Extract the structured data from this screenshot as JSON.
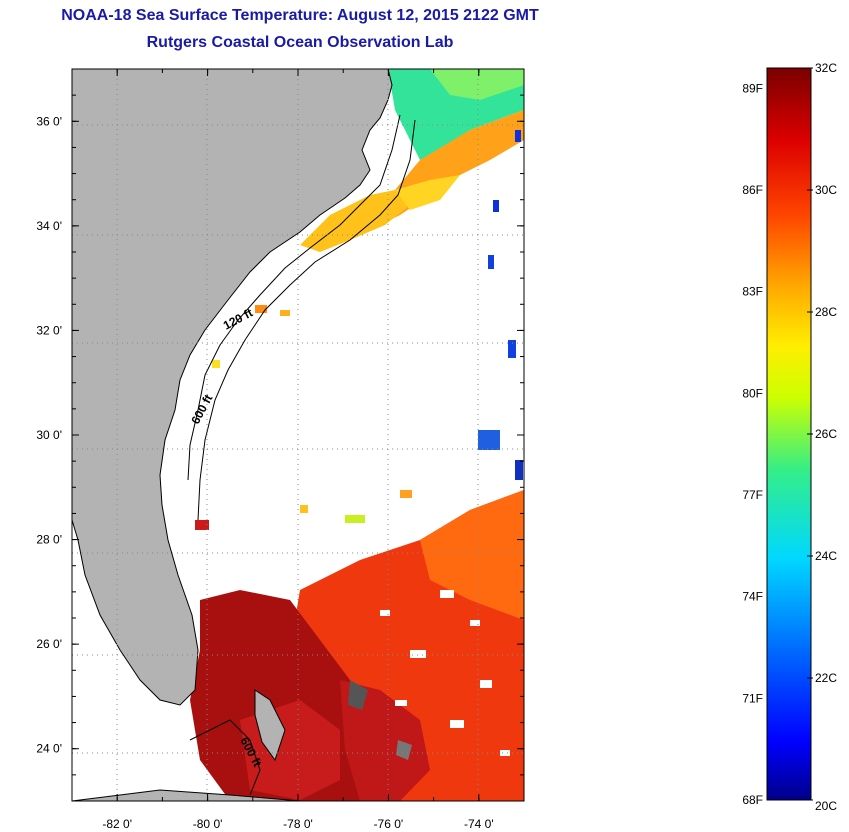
{
  "header": {
    "title": "NOAA-18 Sea Surface Temperature:  August 12, 2015 2122 GMT",
    "subtitle": "Rutgers Coastal Ocean Observation Lab"
  },
  "map": {
    "lon_range": [
      -83,
      -73
    ],
    "lat_range": [
      23,
      37
    ],
    "lon_ticks": [
      {
        "value": -82,
        "label": "-82 0'"
      },
      {
        "value": -80,
        "label": "-80 0'"
      },
      {
        "value": -78,
        "label": "-78 0'"
      },
      {
        "value": -76,
        "label": "-76 0'"
      },
      {
        "value": -74,
        "label": "-74 0'"
      }
    ],
    "lat_ticks": [
      {
        "value": 36,
        "label": "36 0'"
      },
      {
        "value": 34,
        "label": "34 0'"
      },
      {
        "value": 32,
        "label": "32 0'"
      },
      {
        "value": 30,
        "label": "30 0'"
      },
      {
        "value": 28,
        "label": "28 0'"
      },
      {
        "value": 26,
        "label": "26 0'"
      },
      {
        "value": 24,
        "label": "24 0'"
      }
    ],
    "contour_labels": [
      "120 ft",
      "600 ft",
      "600 ft"
    ],
    "colors": {
      "land": "#b3b3b3",
      "ocean_nodata": "#ffffff",
      "grid": "#888888"
    }
  },
  "colorbar": {
    "range_c": [
      20,
      32
    ],
    "celsius_labels": [
      "32C",
      "30C",
      "28C",
      "26C",
      "24C",
      "22C",
      "20C"
    ],
    "fahrenheit_labels": [
      "89F",
      "86F",
      "83F",
      "80F",
      "77F",
      "74F",
      "71F",
      "68F"
    ]
  }
}
